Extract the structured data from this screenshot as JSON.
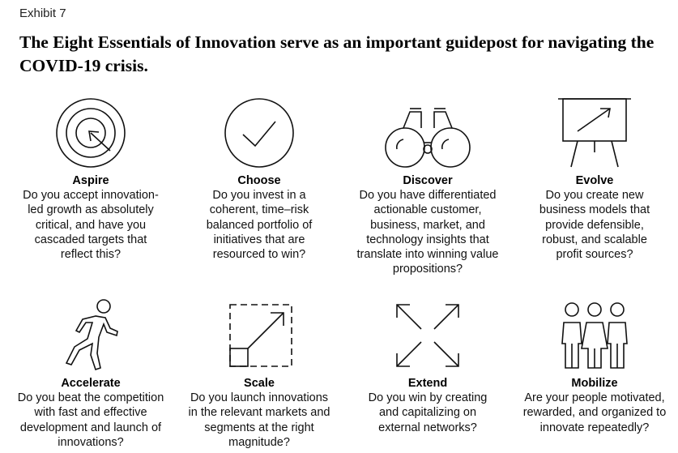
{
  "exhibit_label": "Exhibit 7",
  "title": "The Eight Essentials of Innovation serve as an important guidepost for navigating the COVID-19 crisis.",
  "items": [
    {
      "label": "Aspire",
      "icon": "target-icon",
      "question": "Do you accept innovation-led growth as absolutely critical, and have you cascaded targets that reflect this?"
    },
    {
      "label": "Choose",
      "icon": "checkmark-icon",
      "question": "Do you invest in a coherent, time–risk balanced portfolio of initiatives that are resourced to win?"
    },
    {
      "label": "Discover",
      "icon": "binoculars-icon",
      "question": "Do you have differentiated actionable customer, business, market, and technology insights that translate into winning value propositions?"
    },
    {
      "label": "Evolve",
      "icon": "presentation-board-icon",
      "question": "Do you create new business models that provide defensible, robust, and scalable profit sources?"
    },
    {
      "label": "Accelerate",
      "icon": "running-person-icon",
      "question": "Do you beat the competition with fast and effective development and launch of innovations?"
    },
    {
      "label": "Scale",
      "icon": "scale-up-icon",
      "question": "Do you launch innovations in the relevant markets and segments at the right magnitude?"
    },
    {
      "label": "Extend",
      "icon": "expand-arrows-icon",
      "question": "Do you win by creating and capitalizing on external networks?"
    },
    {
      "label": "Mobilize",
      "icon": "people-group-icon",
      "question": "Are your people motivated, rewarded, and organized to innovate repeatedly?"
    }
  ]
}
